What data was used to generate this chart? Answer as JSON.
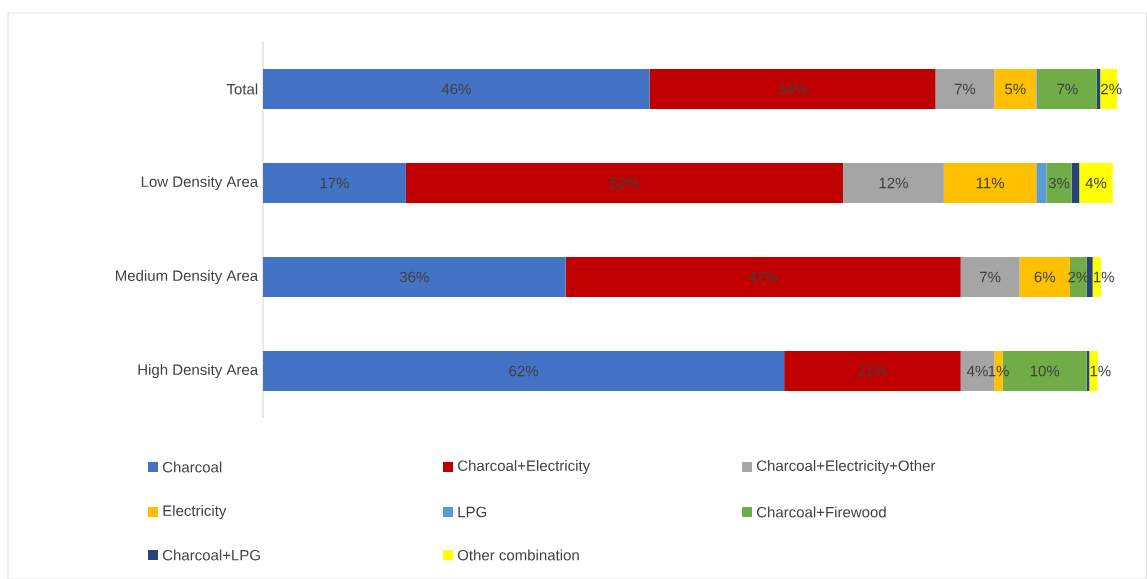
{
  "chart_data": {
    "type": "bar",
    "orientation": "horizontal",
    "stacked": true,
    "legend": "bottom",
    "categories": [
      "Total",
      "Low Density Area",
      "Medium Density Area",
      "High Density Area"
    ],
    "series": [
      {
        "name": "Charcoal",
        "color": "#4472c4",
        "values": [
          46,
          17,
          36,
          62
        ],
        "value_labels": [
          "46%",
          "17%",
          "36%",
          "62%"
        ]
      },
      {
        "name": "Charcoal+Electricity",
        "color": "#c00000",
        "values": [
          34,
          52,
          47,
          21
        ],
        "value_labels": [
          "34%",
          "52%",
          "47%",
          "21%"
        ]
      },
      {
        "name": "Charcoal+Electricity+Other",
        "color": "#a5a5a5",
        "values": [
          7,
          12,
          7,
          4
        ],
        "value_labels": [
          "7%",
          "12%",
          "7%",
          "4%"
        ]
      },
      {
        "name": "Electricity",
        "color": "#ffc000",
        "values": [
          5,
          11,
          6,
          1
        ],
        "value_labels": [
          "5%",
          "11%",
          "6%",
          "1%"
        ]
      },
      {
        "name": "LPG",
        "color": "#5b9bd5",
        "values": [
          0.2,
          1.2,
          0,
          0
        ],
        "value_labels": [
          null,
          null,
          null,
          null
        ]
      },
      {
        "name": "Charcoal+Firewood",
        "color": "#70ad47",
        "values": [
          7,
          3,
          2,
          10
        ],
        "value_labels": [
          "7%",
          "3%",
          "2%",
          "10%"
        ]
      },
      {
        "name": "Charcoal+LPG",
        "color": "#264478",
        "values": [
          0.4,
          0.9,
          0.7,
          0.3
        ],
        "value_labels": [
          null,
          null,
          null,
          null
        ]
      },
      {
        "name": "Other combination",
        "color": "#ffff00",
        "values": [
          2,
          4,
          1,
          1
        ],
        "value_labels": [
          "2%",
          "4%",
          "1%",
          "1%"
        ]
      }
    ]
  }
}
